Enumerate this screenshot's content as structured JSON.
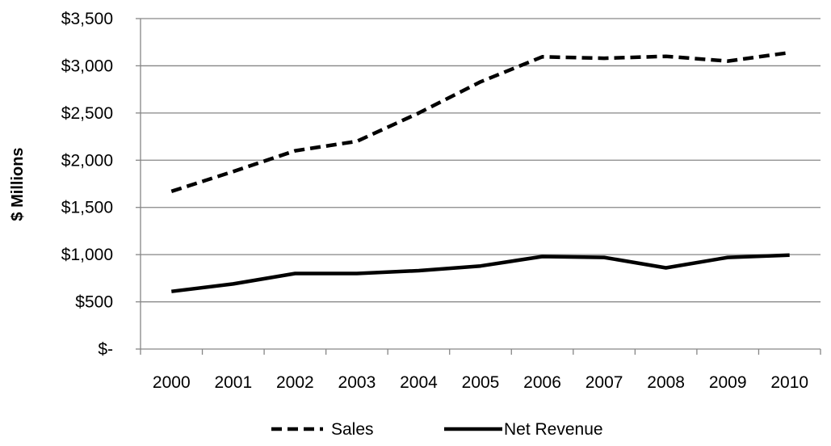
{
  "chart_data": {
    "type": "line",
    "title": "",
    "xlabel": "",
    "ylabel": "$ Millions",
    "ylim": [
      0,
      3500
    ],
    "y_ticks": [
      0,
      500,
      1000,
      1500,
      2000,
      2500,
      3000,
      3500
    ],
    "y_tick_labels": [
      "$-",
      "$500",
      "$1,000",
      "$1,500",
      "$2,000",
      "$2,500",
      "$3,000",
      "$3,500"
    ],
    "categories": [
      "2000",
      "2001",
      "2002",
      "2003",
      "2004",
      "2005",
      "2006",
      "2007",
      "2008",
      "2009",
      "2010"
    ],
    "grid": "horizontal",
    "legend_position": "bottom",
    "series": [
      {
        "name": "Sales",
        "style": "dashed",
        "color": "#000000",
        "values": [
          1670,
          1880,
          2100,
          2200,
          2500,
          2830,
          3095,
          3080,
          3100,
          3050,
          3140
        ]
      },
      {
        "name": "Net Revenue",
        "style": "solid",
        "color": "#000000",
        "values": [
          610,
          690,
          800,
          800,
          830,
          880,
          980,
          970,
          860,
          970,
          995
        ]
      }
    ]
  }
}
